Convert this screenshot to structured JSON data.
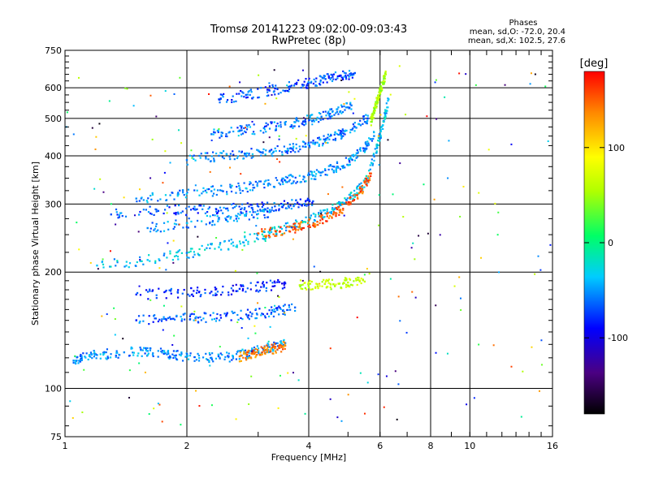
{
  "chart_data": {
    "type": "scatter",
    "title": "Tromsø 20141223 09:02:00-09:03:43",
    "subtitle": "RwPretec (8p)",
    "xlabel": "Frequency [MHz]",
    "ylabel": "Stationary phase Virtual Height [km]",
    "x_scale": "log",
    "y_scale": "log",
    "xlim": [
      1,
      16
    ],
    "ylim": [
      75,
      750
    ],
    "x_ticks": [
      "1",
      "2",
      "4",
      "6",
      "8",
      "10",
      "16"
    ],
    "x_tick_values": [
      1,
      2,
      4,
      6,
      8,
      10,
      16
    ],
    "y_ticks": [
      "75",
      "100",
      "200",
      "300",
      "400",
      "500",
      "600",
      "750"
    ],
    "y_tick_values": [
      75,
      100,
      200,
      300,
      400,
      500,
      600,
      750
    ],
    "grid": true,
    "stats": {
      "heading": "Phases",
      "line1": "mean, sd,O: -72.0, 20.4",
      "line2": "mean, sd,X: 102.5, 27.6"
    },
    "colorbar": {
      "label": "[deg]",
      "ticks": [
        "100",
        "0",
        "-100"
      ],
      "tick_values": [
        100,
        0,
        -100
      ],
      "range": [
        -180,
        180
      ]
    },
    "traces": [
      {
        "phase": -55,
        "points": [
          [
            1.05,
            118
          ],
          [
            1.1,
            120
          ],
          [
            1.2,
            122
          ],
          [
            1.4,
            124
          ],
          [
            1.6,
            125
          ],
          [
            1.8,
            123
          ],
          [
            2.0,
            121
          ],
          [
            2.3,
            120
          ],
          [
            2.6,
            121
          ],
          [
            2.9,
            124
          ],
          [
            3.2,
            128
          ],
          [
            3.5,
            131
          ]
        ]
      },
      {
        "phase": 140,
        "points": [
          [
            2.7,
            121
          ],
          [
            2.9,
            123
          ],
          [
            3.1,
            125
          ],
          [
            3.3,
            127
          ],
          [
            3.5,
            129
          ]
        ]
      },
      {
        "phase": -65,
        "points": [
          [
            1.5,
            150
          ],
          [
            1.8,
            152
          ],
          [
            2.1,
            152
          ],
          [
            2.5,
            154
          ],
          [
            2.9,
            156
          ],
          [
            3.3,
            158
          ],
          [
            3.7,
            162
          ]
        ]
      },
      {
        "phase": -80,
        "points": [
          [
            1.5,
            175
          ],
          [
            1.9,
            177
          ],
          [
            2.3,
            178
          ],
          [
            2.7,
            181
          ],
          [
            3.1,
            184
          ],
          [
            3.5,
            187
          ]
        ]
      },
      {
        "phase": 60,
        "points": [
          [
            3.8,
            185
          ],
          [
            4.2,
            186
          ],
          [
            4.6,
            186
          ],
          [
            5.0,
            188
          ],
          [
            5.5,
            189
          ]
        ]
      },
      {
        "phase": -40,
        "points": [
          [
            1.2,
            208
          ],
          [
            1.6,
            215
          ],
          [
            2.0,
            224
          ],
          [
            2.4,
            232
          ],
          [
            2.8,
            242
          ],
          [
            3.2,
            252
          ],
          [
            3.6,
            262
          ],
          [
            4.0,
            272
          ],
          [
            4.4,
            284
          ],
          [
            4.8,
            298
          ],
          [
            5.2,
            318
          ],
          [
            5.6,
            350
          ],
          [
            5.9,
            420
          ],
          [
            6.1,
            480
          ],
          [
            6.3,
            560
          ]
        ]
      },
      {
        "phase": 150,
        "points": [
          [
            3.0,
            252
          ],
          [
            3.4,
            255
          ],
          [
            3.8,
            262
          ],
          [
            4.2,
            270
          ],
          [
            4.6,
            282
          ],
          [
            5.0,
            300
          ],
          [
            5.4,
            325
          ],
          [
            5.7,
            360
          ]
        ]
      },
      {
        "phase": -70,
        "points": [
          [
            1.3,
            282
          ],
          [
            1.7,
            288
          ],
          [
            2.1,
            290
          ],
          [
            2.5,
            292
          ],
          [
            2.9,
            293
          ],
          [
            3.3,
            296
          ],
          [
            3.7,
            300
          ],
          [
            4.1,
            305
          ]
        ]
      },
      {
        "phase": -55,
        "points": [
          [
            1.6,
            260
          ],
          [
            2.0,
            268
          ],
          [
            2.4,
            274
          ],
          [
            2.8,
            280
          ],
          [
            3.2,
            286
          ]
        ]
      },
      {
        "phase": -55,
        "points": [
          [
            1.5,
            310
          ],
          [
            1.9,
            318
          ],
          [
            2.3,
            324
          ],
          [
            2.7,
            330
          ],
          [
            3.1,
            338
          ],
          [
            3.5,
            345
          ],
          [
            3.9,
            352
          ],
          [
            4.3,
            362
          ],
          [
            4.7,
            375
          ],
          [
            5.1,
            392
          ],
          [
            5.5,
            418
          ],
          [
            5.8,
            450
          ]
        ]
      },
      {
        "phase": -60,
        "points": [
          [
            2.0,
            390
          ],
          [
            2.4,
            400
          ],
          [
            2.8,
            405
          ],
          [
            3.2,
            410
          ],
          [
            3.6,
            418
          ],
          [
            4.0,
            428
          ],
          [
            4.4,
            440
          ],
          [
            4.8,
            456
          ],
          [
            5.2,
            475
          ],
          [
            5.6,
            500
          ]
        ]
      },
      {
        "phase": -60,
        "points": [
          [
            2.3,
            455
          ],
          [
            2.7,
            465
          ],
          [
            3.1,
            472
          ],
          [
            3.5,
            482
          ],
          [
            3.9,
            492
          ],
          [
            4.3,
            505
          ],
          [
            4.7,
            520
          ],
          [
            5.1,
            540
          ]
        ]
      },
      {
        "phase": -70,
        "points": [
          [
            2.4,
            560
          ],
          [
            2.8,
            575
          ],
          [
            3.2,
            590
          ],
          [
            3.6,
            605
          ],
          [
            4.0,
            618
          ],
          [
            4.4,
            632
          ],
          [
            4.8,
            645
          ],
          [
            5.2,
            655
          ]
        ]
      },
      {
        "phase": 50,
        "points": [
          [
            5.7,
            490
          ],
          [
            5.8,
            520
          ],
          [
            5.9,
            555
          ],
          [
            6.0,
            590
          ],
          [
            6.1,
            620
          ],
          [
            6.2,
            650
          ]
        ]
      }
    ]
  }
}
